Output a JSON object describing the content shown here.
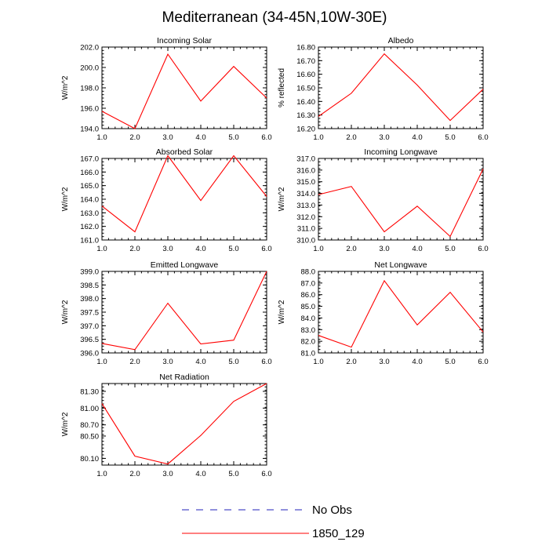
{
  "figure": {
    "title": "Mediterranean (34-45N,10W-30E)"
  },
  "colors": {
    "series_1850": "#ff0000",
    "series_obs": "#2222bb",
    "axes": "#000000"
  },
  "legend": {
    "items": [
      {
        "name": "No Obs",
        "style": "dashed",
        "color": "#2222bb"
      },
      {
        "name": "1850_129",
        "style": "solid",
        "color": "#ff0000"
      }
    ]
  },
  "chart_data": [
    {
      "type": "line",
      "title": "Incoming Solar",
      "ylabel": "W/m^2",
      "x": [
        1,
        2,
        3,
        4,
        5,
        6
      ],
      "xticks": [
        "1.0",
        "2.0",
        "3.0",
        "4.0",
        "5.0",
        "6.0"
      ],
      "xlim": [
        1,
        6
      ],
      "ylim": [
        194,
        202
      ],
      "yticks": [
        "194.0",
        "196.0",
        "198.0",
        "200.0",
        "202.0"
      ],
      "ytick_values": [
        194,
        196,
        198,
        200,
        202
      ],
      "series": [
        {
          "name": "1850_129",
          "values": [
            195.7,
            194.0,
            201.3,
            196.7,
            200.1,
            197.0
          ]
        }
      ]
    },
    {
      "type": "line",
      "title": "Albedo",
      "ylabel": "% reflected",
      "x": [
        1,
        2,
        3,
        4,
        5,
        6
      ],
      "xticks": [
        "1.0",
        "2.0",
        "3.0",
        "4.0",
        "5.0",
        "6.0"
      ],
      "xlim": [
        1,
        6
      ],
      "ylim": [
        16.2,
        16.8
      ],
      "yticks": [
        "16.20",
        "16.30",
        "16.40",
        "16.50",
        "16.60",
        "16.70",
        "16.80"
      ],
      "ytick_values": [
        16.2,
        16.3,
        16.4,
        16.5,
        16.6,
        16.7,
        16.8
      ],
      "series": [
        {
          "name": "1850_129",
          "values": [
            16.29,
            16.46,
            16.75,
            16.52,
            16.26,
            16.49
          ]
        }
      ]
    },
    {
      "type": "line",
      "title": "Absorbed Solar",
      "ylabel": "W/m^2",
      "x": [
        1,
        2,
        3,
        4,
        5,
        6
      ],
      "xticks": [
        "1.0",
        "2.0",
        "3.0",
        "4.0",
        "5.0",
        "6.0"
      ],
      "xlim": [
        1,
        6
      ],
      "ylim": [
        161,
        167
      ],
      "yticks": [
        "161.0",
        "162.0",
        "163.0",
        "164.0",
        "165.0",
        "166.0",
        "167.0"
      ],
      "ytick_values": [
        161,
        162,
        163,
        164,
        165,
        166,
        167
      ],
      "series": [
        {
          "name": "1850_129",
          "values": [
            163.5,
            161.6,
            167.2,
            163.9,
            167.2,
            164.2
          ]
        }
      ]
    },
    {
      "type": "line",
      "title": "Incoming Longwave",
      "ylabel": "W/m^2",
      "x": [
        1,
        2,
        3,
        4,
        5,
        6
      ],
      "xticks": [
        "1.0",
        "2.0",
        "3.0",
        "4.0",
        "5.0",
        "6.0"
      ],
      "xlim": [
        1,
        6
      ],
      "ylim": [
        310,
        317
      ],
      "yticks": [
        "310.0",
        "311.0",
        "312.0",
        "313.0",
        "314.0",
        "315.0",
        "316.0",
        "317.0"
      ],
      "ytick_values": [
        310,
        311,
        312,
        313,
        314,
        315,
        316,
        317
      ],
      "series": [
        {
          "name": "1850_129",
          "values": [
            313.9,
            314.6,
            310.7,
            312.9,
            310.3,
            316.1
          ]
        }
      ]
    },
    {
      "type": "line",
      "title": "Emitted Longwave",
      "ylabel": "W/m^2",
      "x": [
        1,
        2,
        3,
        4,
        5,
        6
      ],
      "xticks": [
        "1.0",
        "2.0",
        "3.0",
        "4.0",
        "5.0",
        "6.0"
      ],
      "xlim": [
        1,
        6
      ],
      "ylim": [
        396,
        399
      ],
      "yticks": [
        "396.0",
        "396.5",
        "397.0",
        "397.5",
        "398.0",
        "398.5",
        "399.0"
      ],
      "ytick_values": [
        396,
        396.5,
        397,
        397.5,
        398,
        398.5,
        399
      ],
      "series": [
        {
          "name": "1850_129",
          "values": [
            396.35,
            396.12,
            397.83,
            396.33,
            396.47,
            399.0
          ]
        }
      ]
    },
    {
      "type": "line",
      "title": "Net Longwave",
      "ylabel": "W/m^2",
      "x": [
        1,
        2,
        3,
        4,
        5,
        6
      ],
      "xticks": [
        "1.0",
        "2.0",
        "3.0",
        "4.0",
        "5.0",
        "6.0"
      ],
      "xlim": [
        1,
        6
      ],
      "ylim": [
        81,
        88
      ],
      "yticks": [
        "81.0",
        "82.0",
        "83.0",
        "84.0",
        "85.0",
        "86.0",
        "87.0",
        "88.0"
      ],
      "ytick_values": [
        81,
        82,
        83,
        84,
        85,
        86,
        87,
        88
      ],
      "series": [
        {
          "name": "1850_129",
          "values": [
            82.5,
            81.5,
            87.2,
            83.4,
            86.2,
            82.8
          ]
        }
      ]
    },
    {
      "type": "line",
      "title": "Net Radiation",
      "ylabel": "W/m^2",
      "x": [
        1,
        2,
        3,
        4,
        5,
        6
      ],
      "xticks": [
        "1.0",
        "2.0",
        "3.0",
        "4.0",
        "5.0",
        "6.0"
      ],
      "xlim": [
        1,
        6
      ],
      "ylim": [
        79.98,
        81.44
      ],
      "yticks": [
        "80.10",
        "80.50",
        "80.70",
        "81.00",
        "81.30"
      ],
      "ytick_values": [
        80.1,
        80.5,
        80.7,
        81.0,
        81.3
      ],
      "series": [
        {
          "name": "1850_129",
          "values": [
            81.08,
            80.14,
            80.0,
            80.51,
            81.12,
            81.44
          ]
        }
      ]
    }
  ]
}
